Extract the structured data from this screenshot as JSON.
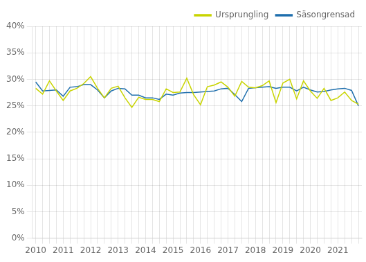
{
  "chart_data": {
    "type": "line",
    "categories": [
      "2010",
      null,
      null,
      null,
      "2011",
      null,
      null,
      null,
      "2012",
      null,
      null,
      null,
      "2013",
      null,
      null,
      null,
      "2014",
      null,
      null,
      null,
      "2015",
      null,
      null,
      null,
      "2016",
      null,
      null,
      null,
      "2017",
      null,
      null,
      null,
      "2018",
      null,
      null,
      null,
      "2019",
      null,
      null,
      null,
      "2020",
      null,
      null,
      null,
      "2021",
      null,
      null,
      null
    ],
    "series": [
      {
        "name": "Ursprungling",
        "color": "#c8d400",
        "values": [
          0.283,
          0.272,
          0.297,
          0.278,
          0.26,
          0.278,
          0.283,
          0.292,
          0.305,
          0.283,
          0.265,
          0.283,
          0.287,
          0.265,
          0.247,
          0.266,
          0.262,
          0.262,
          0.258,
          0.282,
          0.275,
          0.276,
          0.302,
          0.271,
          0.252,
          0.286,
          0.289,
          0.295,
          0.285,
          0.268,
          0.296,
          0.285,
          0.284,
          0.288,
          0.297,
          0.256,
          0.293,
          0.3,
          0.263,
          0.297,
          0.278,
          0.264,
          0.283,
          0.26,
          0.265,
          0.276,
          0.26,
          0.253
        ]
      },
      {
        "name": "Säsongrensad",
        "color": "#1f6fad",
        "values": [
          0.295,
          0.278,
          0.279,
          0.28,
          0.268,
          0.285,
          0.286,
          0.29,
          0.29,
          0.28,
          0.265,
          0.278,
          0.283,
          0.282,
          0.27,
          0.27,
          0.265,
          0.265,
          0.262,
          0.272,
          0.27,
          0.274,
          0.275,
          0.275,
          0.276,
          0.277,
          0.278,
          0.282,
          0.283,
          0.271,
          0.258,
          0.283,
          0.284,
          0.285,
          0.286,
          0.283,
          0.285,
          0.285,
          0.278,
          0.285,
          0.28,
          0.276,
          0.277,
          0.28,
          0.282,
          0.283,
          0.279,
          0.25
        ]
      }
    ],
    "ylim": [
      0,
      0.4
    ],
    "yticks": [
      {
        "value": 0,
        "label": "0%"
      },
      {
        "value": 0.05,
        "label": "5%"
      },
      {
        "value": 0.1,
        "label": "10%"
      },
      {
        "value": 0.15,
        "label": "15%"
      },
      {
        "value": 0.2,
        "label": "20%"
      },
      {
        "value": 0.25,
        "label": "25%"
      },
      {
        "value": 0.3,
        "label": "30%"
      },
      {
        "value": 0.35,
        "label": "35%"
      },
      {
        "value": 0.4,
        "label": "40%"
      }
    ],
    "grid": true,
    "legend": "upper right"
  }
}
